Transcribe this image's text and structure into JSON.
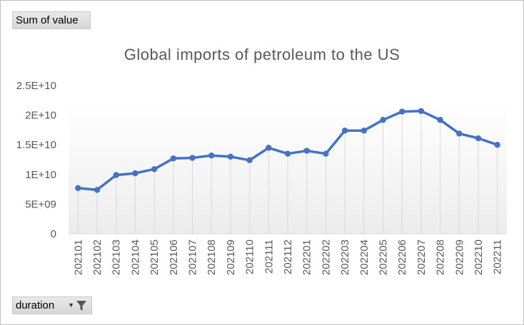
{
  "pivot": {
    "value_field_label": "Sum of value",
    "axis_field_label": "duration",
    "filter_icon": "funnel-icon",
    "dropdown_icon": "dropdown-arrow-icon"
  },
  "chart_data": {
    "type": "line",
    "title": "Global imports of petroleum to the US",
    "xlabel": "",
    "ylabel": "",
    "categories": [
      "202101",
      "202102",
      "202103",
      "202104",
      "202105",
      "202106",
      "202107",
      "202108",
      "202109",
      "202110",
      "202111",
      "202112",
      "202201",
      "202202",
      "202203",
      "202204",
      "202205",
      "202206",
      "202207",
      "202208",
      "202209",
      "202210",
      "202211"
    ],
    "series": [
      {
        "values": [
          7700000000.0,
          7400000000.0,
          9900000000.0,
          10200000000.0,
          10900000000.0,
          12700000000.0,
          12800000000.0,
          13200000000.0,
          13000000000.0,
          12400000000.0,
          14500000000.0,
          13500000000.0,
          14000000000.0,
          13500000000.0,
          17400000000.0,
          17400000000.0,
          19200000000.0,
          20600000000.0,
          20700000000.0,
          19200000000.0,
          16900000000.0,
          16100000000.0,
          15000000000.0
        ],
        "color": "#4472c4"
      }
    ],
    "ylim": [
      0,
      25000000000
    ],
    "yticks": [
      0,
      5000000000,
      10000000000,
      15000000000,
      20000000000,
      25000000000
    ],
    "ytick_labels": [
      "0",
      "5E+09",
      "1E+10",
      "1.5E+10",
      "2E+10",
      "2.5E+10"
    ],
    "grid": "vertical drop lines",
    "legend": "none"
  }
}
